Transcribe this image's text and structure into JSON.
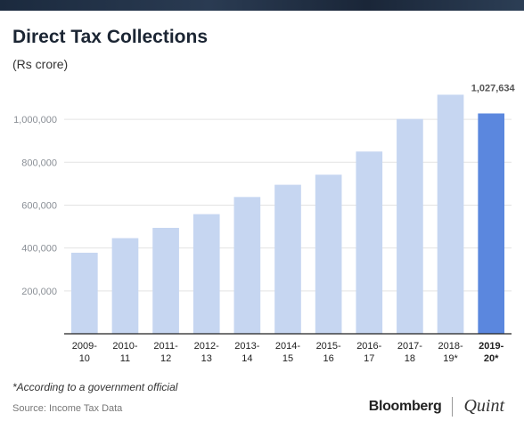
{
  "title": "Direct Tax Collections",
  "subtitle": "(Rs crore)",
  "footnote": "*According to a government official",
  "source": "Source: Income Tax Data",
  "brand": {
    "name_a": "Bloomberg",
    "name_b": "Quint"
  },
  "colors": {
    "bar": "#c6d6f1",
    "highlight": "#5b87de",
    "grid": "#e3e3e3"
  },
  "chart_data": {
    "type": "bar",
    "categories": [
      [
        "2009-",
        "10"
      ],
      [
        "2010-",
        "11"
      ],
      [
        "2011-",
        "12"
      ],
      [
        "2012-",
        "13"
      ],
      [
        "2013-",
        "14"
      ],
      [
        "2014-",
        "15"
      ],
      [
        "2015-",
        "16"
      ],
      [
        "2016-",
        "17"
      ],
      [
        "2017-",
        "18"
      ],
      [
        "2018-",
        "19*"
      ],
      [
        "2019-",
        "20*"
      ]
    ],
    "values": [
      378000,
      446000,
      494000,
      558000,
      638000,
      695000,
      742000,
      850000,
      1002000,
      1115000,
      1027634
    ],
    "highlight_index": 10,
    "data_labels": [
      {
        "index": 10,
        "text": "1,027,634"
      }
    ],
    "yticks": [
      200000,
      400000,
      600000,
      800000,
      1000000
    ],
    "ytick_labels": [
      "200,000",
      "400,000",
      "600,000",
      "800,000",
      "1,000,000"
    ],
    "ylim": [
      0,
      1150000
    ],
    "grid": true,
    "xlabel": "",
    "ylabel": ""
  }
}
